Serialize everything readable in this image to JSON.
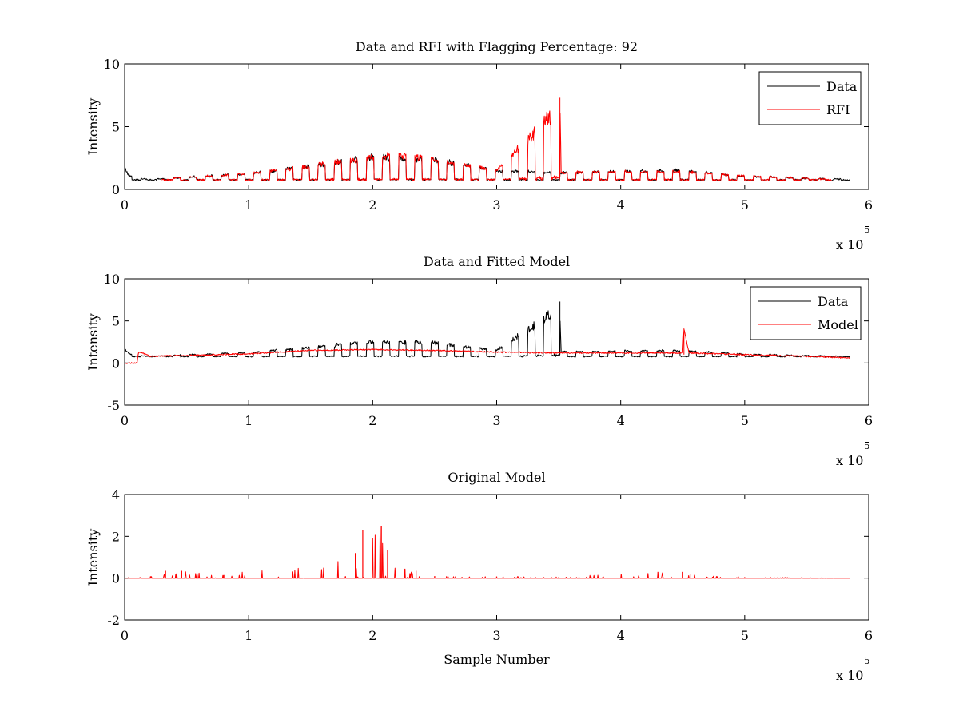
{
  "chart_data": [
    {
      "type": "line",
      "title": "Data and RFI with Flagging Percentage: 92",
      "xlabel": "",
      "ylabel": "Intensity",
      "xlim": [
        0,
        600000
      ],
      "ylim": [
        0,
        10
      ],
      "xticks": [
        0,
        1,
        2,
        3,
        4,
        5,
        6
      ],
      "yticks": [
        0,
        5,
        10
      ],
      "x_multiplier_label": "x 10",
      "x_multiplier_exp": "5",
      "legend": "top-right",
      "series": [
        {
          "name": "Data",
          "color": "#000000",
          "x": [
            0,
            3000,
            8000,
            20000,
            50000,
            100000,
            150000,
            200000,
            250000,
            300000,
            350000,
            400000,
            450000,
            500000,
            550000,
            585000
          ],
          "y": [
            1.9,
            1.2,
            0.9,
            0.8,
            1.0,
            1.3,
            2.0,
            2.8,
            2.6,
            1.6,
            1.4,
            1.5,
            1.6,
            1.1,
            0.9,
            0.8
          ]
        },
        {
          "name": "RFI",
          "color": "#ff0000",
          "x": [
            30000,
            50000,
            100000,
            150000,
            200000,
            220000,
            250000,
            300000,
            351000,
            352000,
            400000,
            450000,
            500000,
            550000,
            570000
          ],
          "y": [
            0.8,
            1.0,
            1.3,
            2.0,
            2.8,
            3.0,
            2.6,
            1.6,
            7.3,
            1.4,
            1.5,
            1.5,
            1.1,
            0.9,
            0.8
          ]
        }
      ]
    },
    {
      "type": "line",
      "title": "Data and Fitted Model",
      "xlabel": "",
      "ylabel": "Intensity",
      "xlim": [
        0,
        600000
      ],
      "ylim": [
        -5,
        10
      ],
      "xticks": [
        0,
        1,
        2,
        3,
        4,
        5,
        6
      ],
      "yticks": [
        -5,
        0,
        5,
        10
      ],
      "x_multiplier_label": "x 10",
      "x_multiplier_exp": "5",
      "legend": "top-right",
      "series": [
        {
          "name": "Data",
          "color": "#000000",
          "x": [
            0,
            3000,
            8000,
            20000,
            50000,
            100000,
            150000,
            200000,
            250000,
            300000,
            351000,
            352000,
            400000,
            450000,
            500000,
            550000,
            585000
          ],
          "y": [
            1.9,
            1.2,
            0.9,
            0.8,
            1.0,
            1.3,
            2.0,
            2.8,
            2.6,
            1.6,
            7.3,
            1.4,
            1.5,
            1.6,
            1.1,
            0.9,
            0.8
          ]
        },
        {
          "name": "Model",
          "color": "#ff0000",
          "x": [
            0,
            10000,
            11000,
            13000,
            20000,
            50000,
            100000,
            150000,
            200000,
            250000,
            300000,
            350000,
            400000,
            450000,
            451000,
            455000,
            500000,
            550000,
            585000
          ],
          "y": [
            0.0,
            0.0,
            1.2,
            1.3,
            0.8,
            0.9,
            1.1,
            1.5,
            1.6,
            1.5,
            1.3,
            1.2,
            1.2,
            1.2,
            4.1,
            1.2,
            1.0,
            0.8,
            0.6
          ]
        }
      ]
    },
    {
      "type": "line",
      "title": "Original Model",
      "xlabel": "Sample Number",
      "ylabel": "Intensity",
      "xlim": [
        0,
        600000
      ],
      "ylim": [
        -2,
        4
      ],
      "xticks": [
        0,
        1,
        2,
        3,
        4,
        5,
        6
      ],
      "yticks": [
        -2,
        0,
        2,
        4
      ],
      "x_multiplier_label": "x 10",
      "x_multiplier_exp": "5",
      "series": [
        {
          "name": "",
          "color": "#ff0000",
          "x": [
            0,
            33000,
            46000,
            80000,
            186000,
            192000,
            207000,
            212000,
            226000,
            235000,
            250000,
            300000,
            350000,
            430000,
            450000,
            456000,
            500000,
            585000
          ],
          "y": [
            0.0,
            0.35,
            0.35,
            0.15,
            1.2,
            2.3,
            2.5,
            1.35,
            0.45,
            0.35,
            0.1,
            0.08,
            0.05,
            0.3,
            0.3,
            0.2,
            0.05,
            0.0
          ]
        }
      ]
    }
  ]
}
